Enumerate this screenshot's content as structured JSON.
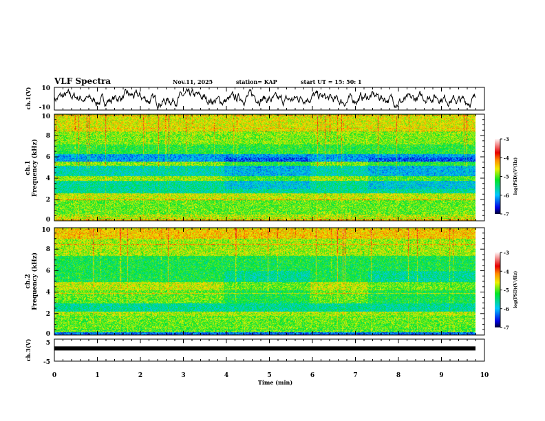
{
  "header": {
    "title": "VLF Spectra",
    "date": "Nov.11, 2025",
    "station": "station= KAP",
    "start": "start  UT =   15: 50: 1"
  },
  "chart_data": [
    {
      "type": "line",
      "name": "ch1-waveform",
      "ylabel": "ch.1(V)",
      "ylim": [
        -10,
        10
      ],
      "yticks": [
        "10",
        "-10"
      ],
      "xlim": [
        0,
        10
      ],
      "duration_min": 9.8
    },
    {
      "type": "heatmap",
      "name": "ch1-spectrogram",
      "ylabel": "ch.1",
      "ylabel2": "Frequency (kHz)",
      "ylim": [
        0,
        10
      ],
      "yticks": [
        "0",
        "2",
        "4",
        "6",
        "8",
        "10"
      ],
      "xlim": [
        0,
        10
      ],
      "colorbar": {
        "label": "log(PSD)(V²/Hz)",
        "range": [
          -7,
          -3
        ],
        "ticks": [
          "-3",
          "-4",
          "-5",
          "-6",
          "-7"
        ]
      },
      "segment_breaks_min": [
        3.95,
        5.95,
        7.3
      ],
      "bands_khz_logpsd": [
        [
          0,
          0.6,
          -4.8
        ],
        [
          0.6,
          2.0,
          -5.0
        ],
        [
          2.0,
          2.6,
          -4.7
        ],
        [
          2.6,
          3.8,
          -5.6
        ],
        [
          3.8,
          4.2,
          -4.8
        ],
        [
          4.2,
          5.2,
          -5.7
        ],
        [
          5.2,
          5.6,
          -4.9
        ],
        [
          5.6,
          6.3,
          -6.1
        ],
        [
          6.3,
          7.2,
          -5.2
        ],
        [
          7.2,
          8.4,
          -4.9
        ],
        [
          8.4,
          10,
          -4.6
        ]
      ]
    },
    {
      "type": "heatmap",
      "name": "ch2-spectrogram",
      "ylabel": "ch.2",
      "ylabel2": "Frequency (kHz)",
      "ylim": [
        0,
        10
      ],
      "yticks": [
        "0",
        "2",
        "4",
        "6",
        "8",
        "10"
      ],
      "xlim": [
        0,
        10
      ],
      "colorbar": {
        "label": "log(PSD)(V²/Hz)",
        "range": [
          -7,
          -3
        ],
        "ticks": [
          "-3",
          "-4",
          "-5",
          "-6",
          "-7"
        ]
      },
      "segment_breaks_min": [
        3.95,
        5.95,
        7.3
      ],
      "bands_khz_logpsd": [
        [
          0,
          0.3,
          -6.3
        ],
        [
          0.3,
          1.8,
          -5.0
        ],
        [
          1.8,
          2.2,
          -4.8
        ],
        [
          2.2,
          3.0,
          -5.6
        ],
        [
          3.0,
          4.2,
          -5.0
        ],
        [
          4.2,
          5.0,
          -4.7
        ],
        [
          5.0,
          6.0,
          -5.3
        ],
        [
          6.0,
          7.4,
          -5.3
        ],
        [
          7.4,
          9.0,
          -4.8
        ],
        [
          9.0,
          10,
          -4.4
        ]
      ]
    },
    {
      "type": "line",
      "name": "ch3-waveform",
      "ylabel": "ch.3(V)",
      "ylim": [
        -5,
        5
      ],
      "yticks": [
        "5",
        "-5"
      ],
      "value_v": 0.8,
      "xlabel": "Time  (min)",
      "xlim": [
        0,
        10
      ],
      "xticks": [
        "0",
        "1",
        "2",
        "3",
        "4",
        "5",
        "6",
        "7",
        "8",
        "9",
        "10"
      ]
    }
  ]
}
